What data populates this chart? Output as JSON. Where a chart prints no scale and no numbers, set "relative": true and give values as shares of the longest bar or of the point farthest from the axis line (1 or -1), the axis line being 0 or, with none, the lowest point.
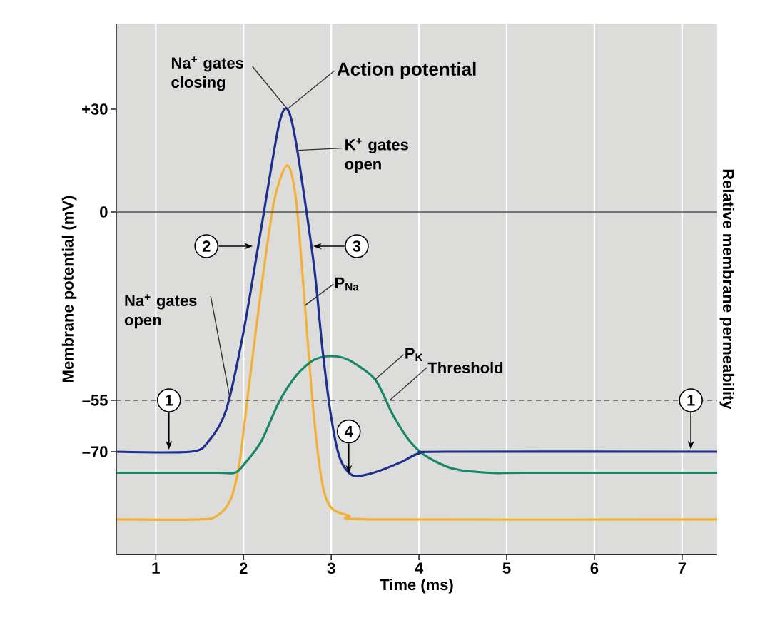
{
  "chart_data": [
    {
      "type": "line",
      "xlabel": "Time (ms)",
      "ylabel": "Membrane potential (mV)",
      "xlim": [
        0.55,
        7.4
      ],
      "xticks": [
        1,
        2,
        3,
        4,
        5,
        6,
        7
      ],
      "ylim": [
        -100,
        55
      ],
      "yticks": [
        {
          "value": 30,
          "label": "+30"
        },
        0,
        {
          "value": -55,
          "label": "–55"
        },
        {
          "value": -70,
          "label": "–70"
        }
      ],
      "legend": false,
      "series": [
        {
          "color": "#1f2f8f",
          "x": [
            0.55,
            1.4,
            1.6,
            1.8,
            2.0,
            2.2,
            2.4,
            2.5,
            2.6,
            2.8,
            2.9,
            3.0,
            3.1,
            3.25,
            3.5,
            3.8,
            4.0,
            4.3,
            7.4
          ],
          "values": [
            -70,
            -70,
            -67,
            -58,
            -35,
            -5,
            25,
            30,
            20,
            -15,
            -40,
            -60,
            -72,
            -77,
            -76,
            -73,
            -70.5,
            -70,
            -70
          ]
        }
      ],
      "ref_lines": [
        {
          "axis": "y",
          "value": 0,
          "color": "#555555",
          "line_style": "solid"
        },
        {
          "axis": "y",
          "value": -55,
          "label": "Threshold",
          "color": "#555555",
          "line_style": "dashed"
        }
      ],
      "annotations": [
        {
          "text": "Na$^{+}$ gates closing",
          "x": 2.5,
          "y": 30
        },
        {
          "text": "Action potential",
          "x": 2.5,
          "y": 30
        },
        {
          "text": "K$^{+}$ gates open",
          "x": 2.62,
          "y": 18
        },
        {
          "text": "Na$^{+}$ gates open",
          "x": 1.85,
          "y": -55
        },
        {
          "text": "1",
          "x": 1.15,
          "y": -70
        },
        {
          "text": "2",
          "x": 2.13,
          "y": -10
        },
        {
          "text": "3",
          "x": 2.77,
          "y": -10
        },
        {
          "text": "4",
          "x": 3.2,
          "y": -77
        },
        {
          "text": "1",
          "x": 7.1,
          "y": -70
        }
      ]
    },
    {
      "type": "line",
      "relative": true,
      "ylabel": "Relative membrane permeability",
      "xlim": [
        0.55,
        7.4
      ],
      "xticks": [
        1,
        2,
        3,
        4,
        5,
        6,
        7
      ],
      "tick_labels": false,
      "grid": "x",
      "legend": false,
      "series": [
        {
          "name": "P$_{Na}$",
          "color": "#f2b134",
          "x": [
            0.55,
            1.5,
            1.7,
            1.85,
            1.95,
            2.05,
            2.2,
            2.35,
            2.5,
            2.6,
            2.7,
            2.8,
            2.9,
            3.0,
            3.2,
            3.5,
            7.4
          ],
          "values": [
            0.09,
            0.09,
            0.1,
            0.14,
            0.23,
            0.41,
            0.68,
            0.91,
            1,
            0.91,
            0.64,
            0.36,
            0.18,
            0.12,
            0.1,
            0.09,
            0.09
          ]
        },
        {
          "name": "P$_{K}$",
          "color": "#16876a",
          "x": [
            0.55,
            1.7,
            1.9,
            2.0,
            2.2,
            2.4,
            2.6,
            2.8,
            3.0,
            3.2,
            3.5,
            3.7,
            3.9,
            4.1,
            4.4,
            4.8,
            5.2,
            7.4
          ],
          "values": [
            0.21,
            0.21,
            0.21,
            0.23,
            0.29,
            0.39,
            0.46,
            0.5,
            0.51,
            0.5,
            0.45,
            0.36,
            0.29,
            0.25,
            0.22,
            0.21,
            0.21,
            0.21
          ]
        }
      ]
    }
  ]
}
